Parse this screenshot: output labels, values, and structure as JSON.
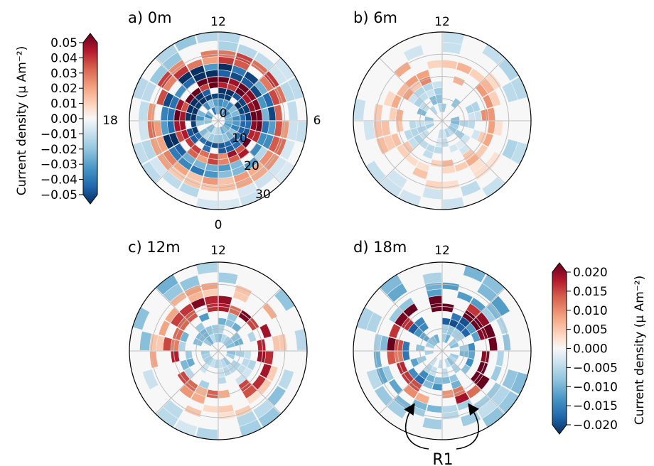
{
  "chart_data": {
    "type": "polar-heatmap",
    "figure_note": "",
    "panels": [
      {
        "id": "a",
        "title": "a) 0m",
        "mlt_labels": {
          "top": "12",
          "right": "6",
          "left": "18",
          "bottom": "0"
        },
        "colat_labels": [
          "0",
          "10",
          "20",
          "30"
        ],
        "colat_rings": [
          10,
          20,
          30
        ],
        "colat_max": 40,
        "colorbar": "cb1",
        "seed": 11,
        "bands": [
          {
            "r0": 3,
            "r1": 10,
            "value": -0.03,
            "fill": 0.85,
            "base": 0
          },
          {
            "r0": 10,
            "r1": 15,
            "value": -0.05,
            "fill": 0.95,
            "base": -0.02
          },
          {
            "r0": 15,
            "r1": 20,
            "value": 0.05,
            "fill": 0.95,
            "base": 0
          },
          {
            "r0": 20,
            "r1": 26,
            "value": -0.045,
            "fill": 0.95,
            "base": 0.01
          },
          {
            "r0": 26,
            "r1": 32,
            "value": 0.03,
            "fill": 0.9,
            "base": 0
          },
          {
            "r0": 32,
            "r1": 40,
            "value": -0.015,
            "fill": 0.8,
            "base": 0
          }
        ]
      },
      {
        "id": "b",
        "title": "b) 6m",
        "mlt_labels": {
          "top": "12",
          "right": "",
          "left": "",
          "bottom": ""
        },
        "colat_labels": [],
        "colat_rings": [
          10,
          20,
          30
        ],
        "colat_max": 40,
        "colorbar": "cb1",
        "seed": 23,
        "bands": [
          {
            "r0": 4,
            "r1": 12,
            "value": -0.02,
            "fill": 0.45,
            "base": 0
          },
          {
            "r0": 12,
            "r1": 18,
            "value": -0.015,
            "fill": 0.55,
            "base": 0
          },
          {
            "r0": 18,
            "r1": 24,
            "value": 0.02,
            "fill": 0.6,
            "base": 0
          },
          {
            "r0": 24,
            "r1": 31,
            "value": 0.015,
            "fill": 0.45,
            "base": 0
          },
          {
            "r0": 31,
            "r1": 40,
            "value": -0.015,
            "fill": 0.35,
            "base": 0
          }
        ]
      },
      {
        "id": "c",
        "title": "c) 12m",
        "mlt_labels": {
          "top": "12",
          "right": "",
          "left": "",
          "bottom": ""
        },
        "colat_labels": [],
        "colat_rings": [
          10,
          20,
          30
        ],
        "colat_max": 40,
        "colorbar": "cb2",
        "seed": 37,
        "bands": [
          {
            "r0": 4,
            "r1": 12,
            "value": -0.008,
            "fill": 0.45,
            "base": 0
          },
          {
            "r0": 12,
            "r1": 18,
            "value": -0.009,
            "fill": 0.55,
            "base": 0
          },
          {
            "r0": 18,
            "r1": 25,
            "value": 0.016,
            "fill": 0.65,
            "base": 0
          },
          {
            "r0": 25,
            "r1": 31,
            "value": 0.007,
            "fill": 0.5,
            "base": 0
          },
          {
            "r0": 31,
            "r1": 40,
            "value": -0.008,
            "fill": 0.35,
            "base": 0
          }
        ]
      },
      {
        "id": "d",
        "title": "d) 18m",
        "mlt_labels": {
          "top": "12",
          "right": "",
          "left": "",
          "bottom": ""
        },
        "colat_labels": [],
        "colat_rings": [
          10,
          20,
          30
        ],
        "colat_max": 40,
        "colorbar": "cb2",
        "seed": 53,
        "bands": [
          {
            "r0": 4,
            "r1": 12,
            "value": -0.009,
            "fill": 0.5,
            "base": 0
          },
          {
            "r0": 12,
            "r1": 18,
            "value": -0.016,
            "fill": 0.65,
            "base": 0
          },
          {
            "r0": 18,
            "r1": 25,
            "value": 0.019,
            "fill": 0.7,
            "base": 0
          },
          {
            "r0": 25,
            "r1": 31,
            "value": -0.01,
            "fill": 0.55,
            "base": 0
          },
          {
            "r0": 31,
            "r1": 40,
            "value": -0.009,
            "fill": 0.45,
            "base": 0
          }
        ],
        "annotation": "R1"
      }
    ],
    "colorbars": [
      {
        "id": "cb1",
        "label": "Current density (μ Am⁻²)",
        "vmin": -0.05,
        "vmax": 0.05,
        "ticks": [
          "0.05",
          "0.04",
          "0.03",
          "0.02",
          "0.01",
          "0.00",
          "−0.01",
          "−0.02",
          "−0.03",
          "−0.04",
          "−0.05"
        ],
        "placement": "left of panel a"
      },
      {
        "id": "cb2",
        "label": "Current density (μ Am⁻²)",
        "vmin": -0.02,
        "vmax": 0.02,
        "ticks": [
          "0.020",
          "0.015",
          "0.010",
          "0.005",
          "0.000",
          "−0.005",
          "−0.010",
          "−0.015",
          "−0.020"
        ],
        "placement": "right of panel d"
      }
    ],
    "colormap": [
      "#053061",
      "#2166ac",
      "#4393c3",
      "#92c5de",
      "#d1e5f0",
      "#f7f7f7",
      "#fddbc7",
      "#f4a582",
      "#d6604d",
      "#b2182b",
      "#67001f"
    ],
    "grid": true
  }
}
